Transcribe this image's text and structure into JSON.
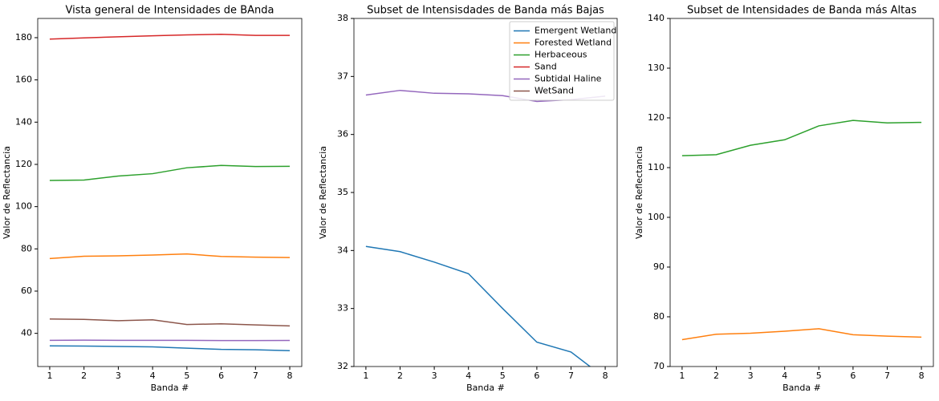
{
  "chart_data": [
    {
      "type": "line",
      "title": "Vista general de Intensidades de BAnda",
      "x_label": "Banda #",
      "y_label": "Valor de Reflectancia",
      "x": [
        1,
        2,
        3,
        4,
        5,
        6,
        7,
        8
      ],
      "xlim": [
        0.65,
        8.35
      ],
      "xticks": [
        1,
        2,
        3,
        4,
        5,
        6,
        7,
        8
      ],
      "ylim": [
        24.3,
        189.1
      ],
      "yticks": [
        40,
        60,
        80,
        100,
        120,
        140,
        160,
        180
      ],
      "legend": false,
      "series": [
        {
          "name": "Emergent Wetland",
          "color": "#1f77b4",
          "values": [
            34.07,
            33.98,
            33.8,
            33.6,
            33.0,
            32.42,
            32.25,
            31.8
          ]
        },
        {
          "name": "Forested Wetland",
          "color": "#ff7f0e",
          "values": [
            75.4,
            76.5,
            76.7,
            77.1,
            77.6,
            76.4,
            76.1,
            75.9
          ]
        },
        {
          "name": "Herbaceous",
          "color": "#2ca02c",
          "values": [
            112.4,
            112.6,
            114.5,
            115.6,
            118.4,
            119.5,
            119.0,
            119.1
          ]
        },
        {
          "name": "Sand",
          "color": "#d62728",
          "values": [
            179.3,
            179.9,
            180.4,
            180.9,
            181.3,
            181.6,
            181.1,
            181.1
          ]
        },
        {
          "name": "Subtidal Haline",
          "color": "#9467bd",
          "values": [
            36.68,
            36.76,
            36.71,
            36.7,
            36.67,
            36.57,
            36.6,
            36.66
          ]
        },
        {
          "name": "WetSand",
          "color": "#8c564b",
          "values": [
            46.8,
            46.6,
            46.0,
            46.4,
            44.2,
            44.5,
            44.0,
            43.5
          ]
        }
      ]
    },
    {
      "type": "line",
      "title": "Subset de Intensisdades de Banda más Bajas",
      "x_label": "Banda #",
      "y_label": "Valor de Reflectancia",
      "x": [
        1,
        2,
        3,
        4,
        5,
        6,
        7,
        8
      ],
      "xlim": [
        0.65,
        8.35
      ],
      "xticks": [
        1,
        2,
        3,
        4,
        5,
        6,
        7,
        8
      ],
      "ylim": [
        32,
        38
      ],
      "yticks": [
        32,
        33,
        34,
        35,
        36,
        37,
        38
      ],
      "legend": "upper right",
      "series": [
        {
          "name": "Emergent Wetland",
          "color": "#1f77b4",
          "values": [
            34.07,
            33.98,
            33.8,
            33.6,
            33.0,
            32.42,
            32.25,
            31.8
          ]
        },
        {
          "name": "Forested Wetland",
          "color": "#ff7f0e",
          "values": [
            75.4,
            76.5,
            76.7,
            77.1,
            77.6,
            76.4,
            76.1,
            75.9
          ]
        },
        {
          "name": "Herbaceous",
          "color": "#2ca02c",
          "values": [
            112.4,
            112.6,
            114.5,
            115.6,
            118.4,
            119.5,
            119.0,
            119.1
          ]
        },
        {
          "name": "Sand",
          "color": "#d62728",
          "values": [
            179.3,
            179.9,
            180.4,
            180.9,
            181.3,
            181.6,
            181.1,
            181.1
          ]
        },
        {
          "name": "Subtidal Haline",
          "color": "#9467bd",
          "values": [
            36.68,
            36.76,
            36.71,
            36.7,
            36.67,
            36.57,
            36.6,
            36.66
          ]
        },
        {
          "name": "WetSand",
          "color": "#8c564b",
          "values": [
            46.8,
            46.6,
            46.0,
            46.4,
            44.2,
            44.5,
            44.0,
            43.5
          ]
        }
      ]
    },
    {
      "type": "line",
      "title": "Subset de Intensidades de Banda más Altas",
      "x_label": "Banda #",
      "y_label": "Valor de Reflectancia",
      "x": [
        1,
        2,
        3,
        4,
        5,
        6,
        7,
        8
      ],
      "xlim": [
        0.65,
        8.35
      ],
      "xticks": [
        1,
        2,
        3,
        4,
        5,
        6,
        7,
        8
      ],
      "ylim": [
        70,
        140
      ],
      "yticks": [
        70,
        80,
        90,
        100,
        110,
        120,
        130,
        140
      ],
      "legend": false,
      "series": [
        {
          "name": "Forested Wetland",
          "color": "#ff7f0e",
          "values": [
            75.4,
            76.5,
            76.7,
            77.1,
            77.6,
            76.4,
            76.1,
            75.9
          ]
        },
        {
          "name": "Herbaceous",
          "color": "#2ca02c",
          "values": [
            112.4,
            112.6,
            114.5,
            115.6,
            118.4,
            119.5,
            119.0,
            119.1
          ]
        }
      ]
    }
  ]
}
